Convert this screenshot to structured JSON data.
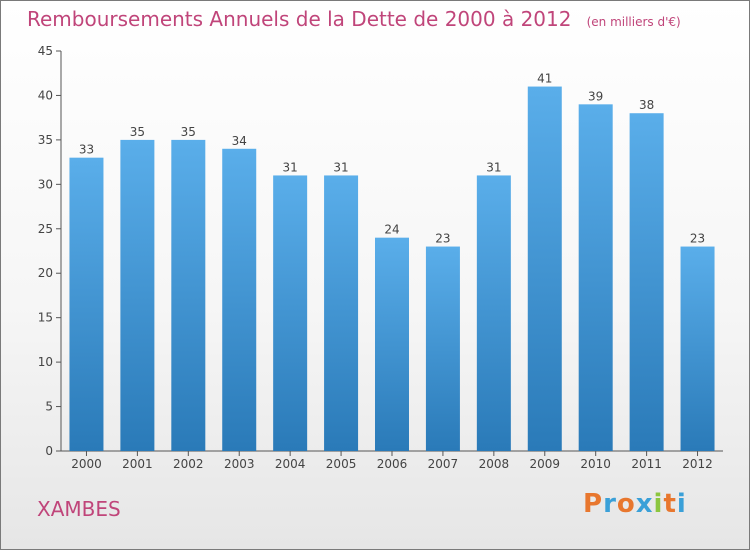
{
  "title": "Remboursements Annuels de la Dette de 2000 à 2012",
  "unit_label": "(en milliers d'€)",
  "town": "XAMBES",
  "logo": {
    "text": "Proxiti",
    "colors": [
      "#e8772e",
      "#3aa0d8",
      "#e8772e",
      "#3aa0d8",
      "#8cc63f",
      "#e8772e",
      "#3aa0d8"
    ]
  },
  "colors": {
    "accent": "#c0457a",
    "bar_light": "#5aaeea",
    "bar_dark": "#2a7ab8",
    "axis": "#555555",
    "grid": "#cccccc"
  },
  "chart_data": {
    "type": "bar",
    "categories": [
      "2000",
      "2001",
      "2002",
      "2003",
      "2004",
      "2005",
      "2006",
      "2007",
      "2008",
      "2009",
      "2010",
      "2011",
      "2012"
    ],
    "values": [
      33,
      35,
      35,
      34,
      31,
      31,
      24,
      23,
      31,
      41,
      39,
      38,
      23
    ],
    "ylim": [
      0,
      45
    ],
    "yticks": [
      0,
      5,
      10,
      15,
      20,
      25,
      30,
      35,
      40,
      45
    ],
    "xlabel": "",
    "ylabel": "",
    "grid": false,
    "data_labels": true
  }
}
